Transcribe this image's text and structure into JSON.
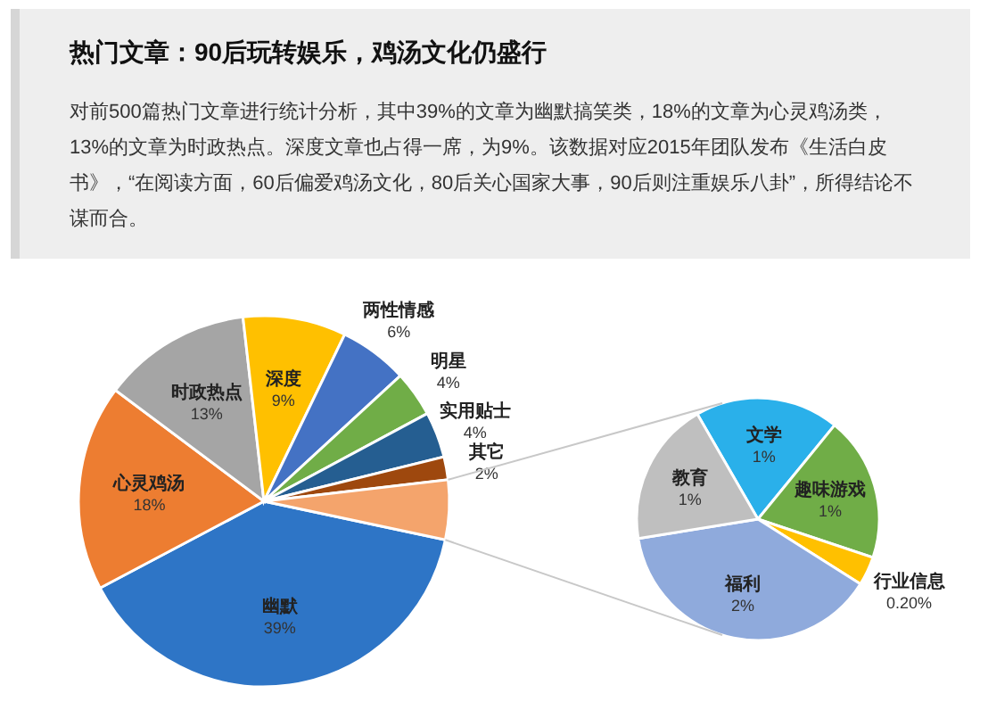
{
  "chart_data": [
    {
      "type": "pie",
      "title": "热门文章：90后玩转娱乐，鸡汤文化仍盛行",
      "subtitle": "对前500篇热门文章进行统计分析，其中39%的文章为幽默搞笑类，18%的文章为心灵鸡汤类，13%的文章为时政热点。深度文章也占得一席，为9%。该数据对应2015年团队发布《生活白皮书》，“在阅读方面，60后偏爱鸡汤文化，80后关心国家大事，90后则注重娱乐八卦”，所得结论不谋而合。",
      "categories": [
        "幽默",
        "心灵鸡汤",
        "时政热点",
        "深度",
        "两性情感",
        "明星",
        "实用贴士",
        "其它",
        null
      ],
      "values": [
        39,
        18,
        13,
        9,
        6,
        4,
        4,
        2,
        5.2
      ],
      "value_labels": [
        "39%",
        "18%",
        "13%",
        "9%",
        "6%",
        "4%",
        "4%",
        "2%",
        null
      ],
      "colors": [
        "#2e75c6",
        "#ed7d31",
        "#a5a5a5",
        "#ffc000",
        "#4472c4",
        "#70ad47",
        "#255e91",
        "#9e480e",
        "#f4a46c"
      ]
    },
    {
      "type": "pie",
      "categories": [
        "文学",
        "趣味游戏",
        "行业信息",
        "福利",
        "教育"
      ],
      "values": [
        1,
        1,
        0.2,
        2,
        1
      ],
      "value_labels": [
        "1%",
        "1%",
        "0.20%",
        "2%",
        "1%"
      ],
      "colors": [
        "#2ab0ea",
        "#70ad47",
        "#ffc000",
        "#8faadc",
        "#bfbfbf"
      ]
    }
  ]
}
